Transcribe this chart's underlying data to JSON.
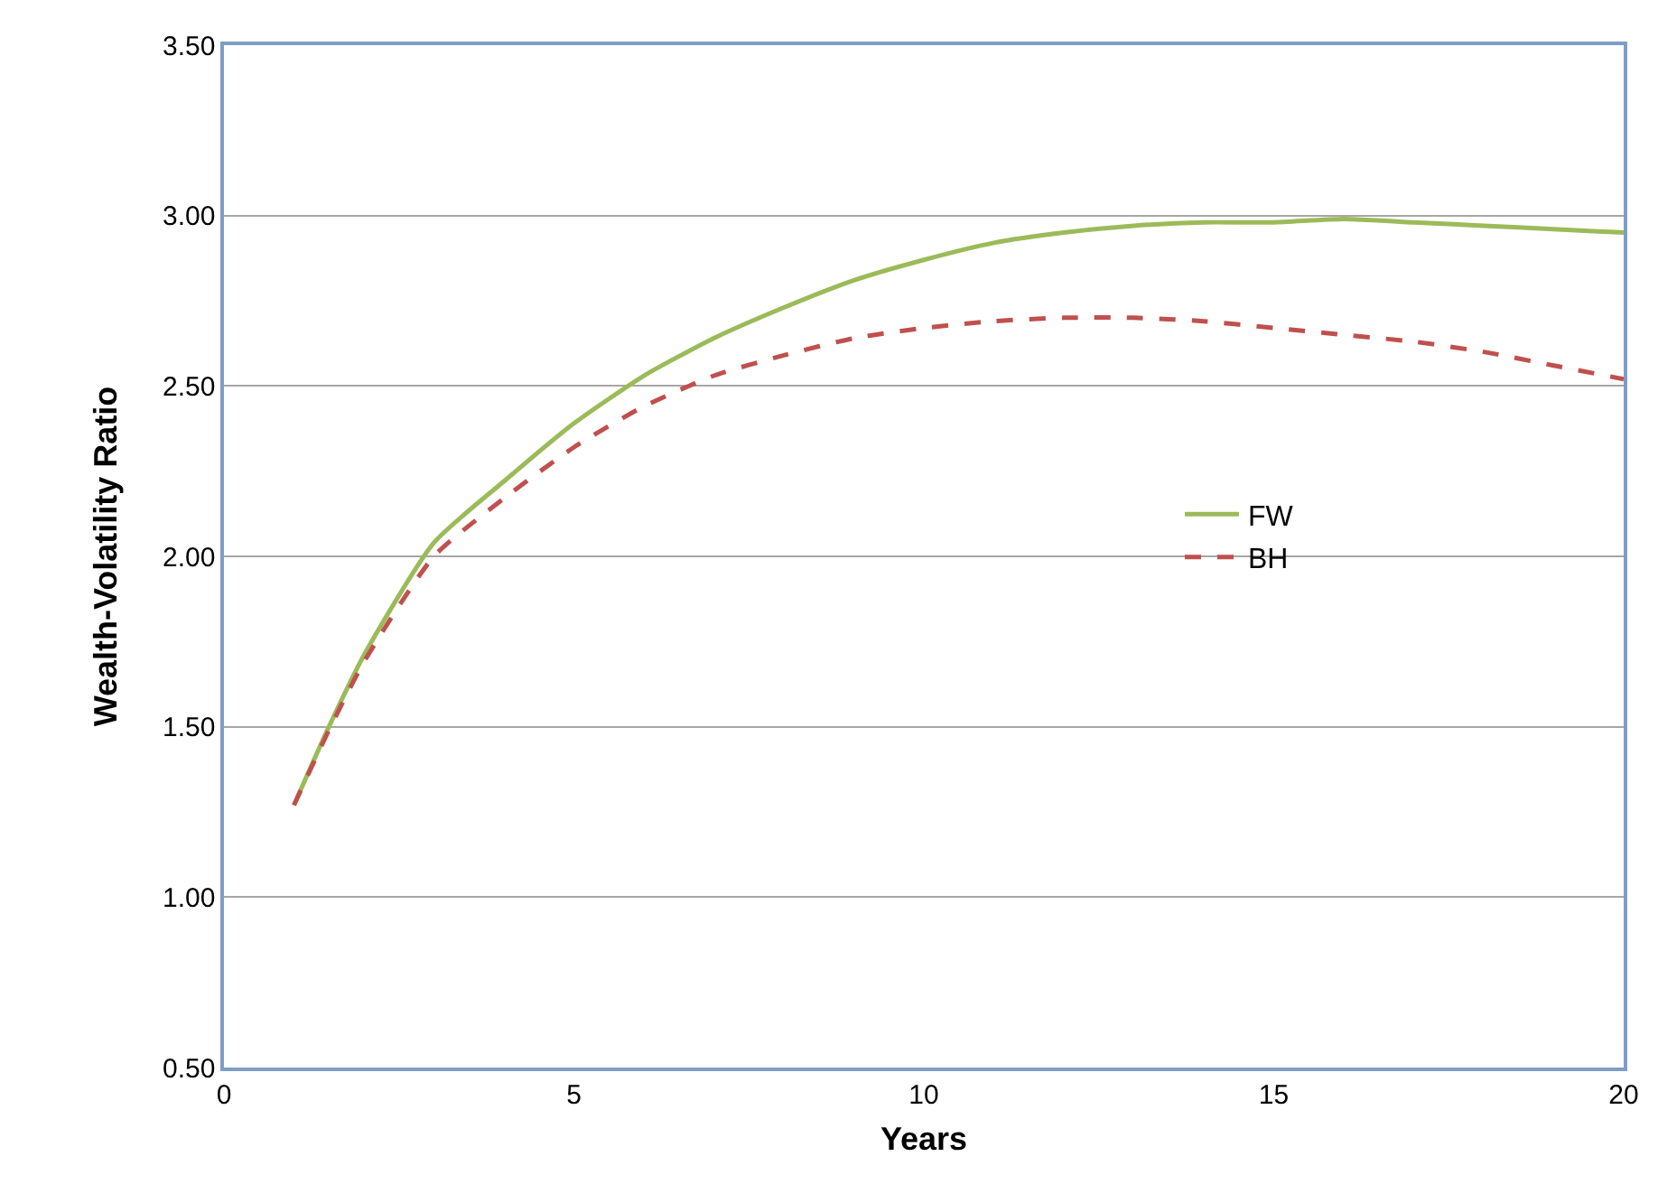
{
  "chart_data": {
    "type": "line",
    "xlabel": "Years",
    "ylabel": "Wealth-Volatility Ratio",
    "x": [
      1,
      1.5,
      2,
      3,
      4,
      5,
      6,
      7,
      8,
      9,
      10,
      11,
      12,
      13,
      14,
      15,
      16,
      17,
      18,
      19,
      20
    ],
    "series": [
      {
        "name": "FW",
        "color": "#9bbb59",
        "line_style": "solid",
        "values": [
          1.27,
          1.5,
          1.71,
          2.04,
          2.22,
          2.39,
          2.53,
          2.64,
          2.73,
          2.81,
          2.87,
          2.92,
          2.95,
          2.97,
          2.98,
          2.98,
          2.99,
          2.98,
          2.97,
          2.96,
          2.95
        ]
      },
      {
        "name": "BH",
        "color": "#c0504d",
        "line_style": "dashed",
        "values": [
          1.27,
          1.49,
          1.69,
          2.0,
          2.17,
          2.32,
          2.44,
          2.53,
          2.59,
          2.64,
          2.67,
          2.69,
          2.7,
          2.7,
          2.69,
          2.67,
          2.65,
          2.63,
          2.6,
          2.56,
          2.52
        ]
      }
    ],
    "xlim": [
      0,
      20
    ],
    "xticks": [
      0,
      5,
      10,
      15,
      20
    ],
    "ylim": [
      0.5,
      3.5
    ],
    "yticks": [
      {
        "value": 0.5,
        "label": "0.50"
      },
      {
        "value": 1,
        "label": "1.00"
      },
      {
        "value": 1.5,
        "label": "1.50"
      },
      {
        "value": 2,
        "label": "2.00"
      },
      {
        "value": 2.5,
        "label": "2.50"
      },
      {
        "value": 3,
        "label": "3.00"
      },
      {
        "value": 3.5,
        "label": "3.50"
      }
    ],
    "grid": "y",
    "legend": "right",
    "marker": "none"
  }
}
